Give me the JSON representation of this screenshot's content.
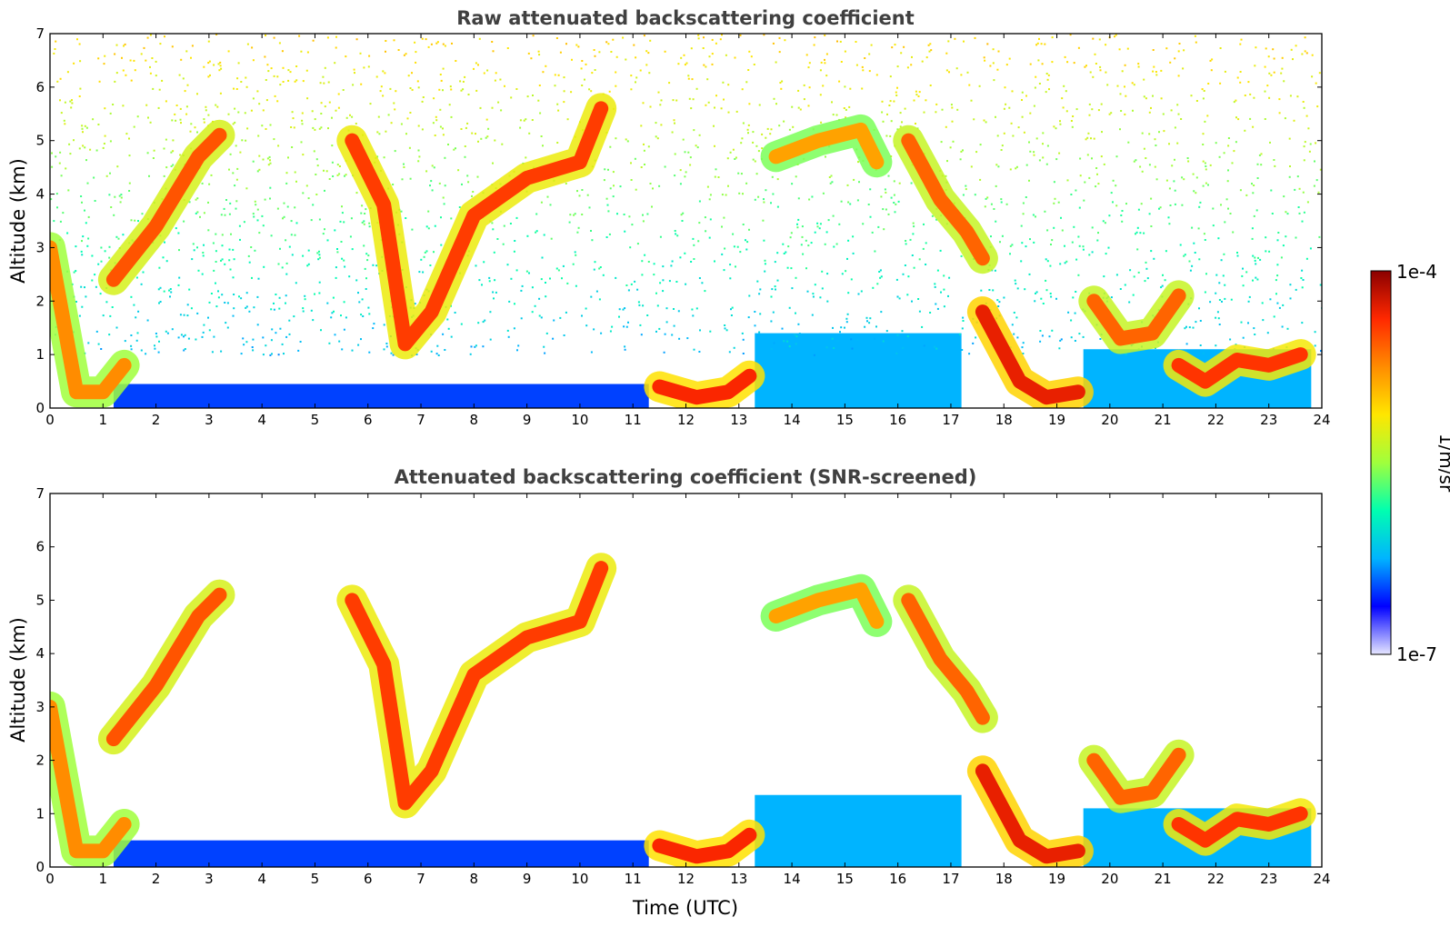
{
  "chart_data": [
    {
      "type": "heatmap",
      "title": "Raw attenuated backscattering coefficient",
      "xlabel": "",
      "ylabel": "Altitude (km)",
      "xlim": [
        0,
        24
      ],
      "ylim": [
        0,
        7
      ],
      "x_ticks": [
        "0",
        "1",
        "2",
        "3",
        "4",
        "5",
        "6",
        "7",
        "8",
        "9",
        "10",
        "11",
        "12",
        "13",
        "14",
        "15",
        "16",
        "17",
        "18",
        "19",
        "20",
        "21",
        "22",
        "23",
        "24"
      ],
      "y_ticks": [
        "0",
        "1",
        "2",
        "3",
        "4",
        "5",
        "6",
        "7"
      ],
      "screened": false,
      "colorscale": "jet",
      "layers": [
        {
          "name": "surface-aerosol",
          "segments": [
            [
              1.2,
              11.3,
              0.0,
              0.45
            ]
          ],
          "level": 0.17
        },
        {
          "name": "boundary-layer-blue",
          "segments": [
            [
              13.3,
              17.2,
              0.0,
              1.4
            ],
            [
              19.5,
              23.8,
              0.0,
              1.1
            ]
          ],
          "level": 0.25
        },
        {
          "name": "noise-above",
          "segments": [
            [
              0,
              24,
              1.0,
              7.0
            ]
          ],
          "level": 0.4
        }
      ],
      "features": [
        {
          "x": [
            0.0,
            0.5,
            1.0,
            1.4
          ],
          "y": [
            3.0,
            0.3,
            0.3,
            0.8
          ],
          "level": 0.75
        },
        {
          "x": [
            1.2,
            2.0,
            2.8,
            3.2
          ],
          "y": [
            2.4,
            3.4,
            4.7,
            5.1
          ],
          "level": 0.82
        },
        {
          "x": [
            5.7,
            6.3,
            6.7,
            7.2,
            8.0,
            9.0,
            10.0,
            10.4
          ],
          "y": [
            5.0,
            3.8,
            1.2,
            1.8,
            3.6,
            4.3,
            4.6,
            5.6
          ],
          "level": 0.85
        },
        {
          "x": [
            11.5,
            12.2,
            12.8,
            13.2
          ],
          "y": [
            0.4,
            0.2,
            0.3,
            0.6
          ],
          "level": 0.88
        },
        {
          "x": [
            13.7,
            14.5,
            15.3,
            15.6
          ],
          "y": [
            4.7,
            5.0,
            5.2,
            4.6
          ],
          "level": 0.72
        },
        {
          "x": [
            16.2,
            16.8,
            17.3,
            17.6
          ],
          "y": [
            5.0,
            3.9,
            3.3,
            2.8
          ],
          "level": 0.8
        },
        {
          "x": [
            17.6,
            18.3,
            18.8,
            19.4
          ],
          "y": [
            1.8,
            0.5,
            0.2,
            0.3
          ],
          "level": 0.9
        },
        {
          "x": [
            19.7,
            20.2,
            20.8,
            21.3
          ],
          "y": [
            2.0,
            1.3,
            1.4,
            2.1
          ],
          "level": 0.8
        },
        {
          "x": [
            21.3,
            21.8,
            22.4,
            23.0,
            23.6
          ],
          "y": [
            0.8,
            0.5,
            0.9,
            0.8,
            1.0
          ],
          "level": 0.86
        }
      ]
    },
    {
      "type": "heatmap",
      "title": "Attenuated backscattering coefficient (SNR-screened)",
      "xlabel": "Time (UTC)",
      "ylabel": "Altitude (km)",
      "xlim": [
        0,
        24
      ],
      "ylim": [
        0,
        7
      ],
      "x_ticks": [
        "0",
        "1",
        "2",
        "3",
        "4",
        "5",
        "6",
        "7",
        "8",
        "9",
        "10",
        "11",
        "12",
        "13",
        "14",
        "15",
        "16",
        "17",
        "18",
        "19",
        "20",
        "21",
        "22",
        "23",
        "24"
      ],
      "y_ticks": [
        "0",
        "1",
        "2",
        "3",
        "4",
        "5",
        "6",
        "7"
      ],
      "screened": true,
      "colorscale": "jet",
      "layers": [
        {
          "name": "surface-aerosol",
          "segments": [
            [
              1.2,
              11.3,
              0.0,
              0.5
            ]
          ],
          "level": 0.17
        },
        {
          "name": "boundary-layer-blue",
          "segments": [
            [
              13.3,
              17.2,
              0.0,
              1.35
            ],
            [
              19.5,
              23.8,
              0.0,
              1.1
            ]
          ],
          "level": 0.25
        }
      ],
      "features": [
        {
          "x": [
            0.0,
            0.5,
            1.0,
            1.4
          ],
          "y": [
            3.0,
            0.3,
            0.3,
            0.8
          ],
          "level": 0.75
        },
        {
          "x": [
            1.2,
            2.0,
            2.8,
            3.2
          ],
          "y": [
            2.4,
            3.4,
            4.7,
            5.1
          ],
          "level": 0.82
        },
        {
          "x": [
            5.7,
            6.3,
            6.7,
            7.2,
            8.0,
            9.0,
            10.0,
            10.4
          ],
          "y": [
            5.0,
            3.8,
            1.2,
            1.8,
            3.6,
            4.3,
            4.6,
            5.6
          ],
          "level": 0.85
        },
        {
          "x": [
            11.5,
            12.2,
            12.8,
            13.2
          ],
          "y": [
            0.4,
            0.2,
            0.3,
            0.6
          ],
          "level": 0.88
        },
        {
          "x": [
            13.7,
            14.5,
            15.3,
            15.6
          ],
          "y": [
            4.7,
            5.0,
            5.2,
            4.6
          ],
          "level": 0.72
        },
        {
          "x": [
            16.2,
            16.8,
            17.3,
            17.6
          ],
          "y": [
            5.0,
            3.9,
            3.3,
            2.8
          ],
          "level": 0.8
        },
        {
          "x": [
            17.6,
            18.3,
            18.8,
            19.4
          ],
          "y": [
            1.8,
            0.5,
            0.2,
            0.3
          ],
          "level": 0.9
        },
        {
          "x": [
            19.7,
            20.2,
            20.8,
            21.3
          ],
          "y": [
            2.0,
            1.3,
            1.4,
            2.1
          ],
          "level": 0.8
        },
        {
          "x": [
            21.3,
            21.8,
            22.4,
            23.0,
            23.6
          ],
          "y": [
            0.8,
            0.5,
            0.9,
            0.8,
            1.0
          ],
          "level": 0.86
        }
      ]
    }
  ],
  "colorbar": {
    "label": "1/m/sr",
    "max_label": "1e-4",
    "min_label": "1e-7",
    "scale": "log",
    "colors": [
      "#e6e6ff",
      "#0000ff",
      "#00b4ff",
      "#00ffb0",
      "#a0ff3c",
      "#ffe600",
      "#ff8c00",
      "#ff2800",
      "#8b0000"
    ]
  }
}
